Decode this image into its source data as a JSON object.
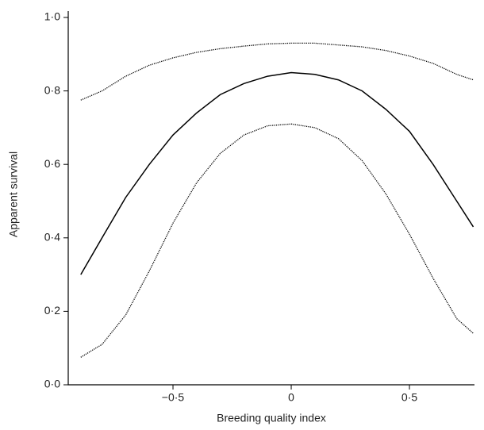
{
  "chart_data": {
    "type": "line",
    "x_label": "Breeding quality index",
    "y_label": "Apparent survival",
    "x": [
      -0.89,
      -0.8,
      -0.7,
      -0.6,
      -0.5,
      -0.4,
      -0.3,
      -0.2,
      -0.1,
      0,
      0.1,
      0.2,
      0.3,
      0.4,
      0.5,
      0.6,
      0.7,
      0.77
    ],
    "series": [
      {
        "color": "#000000",
        "style": "dotted",
        "values": [
          0.775,
          0.8,
          0.84,
          0.87,
          0.89,
          0.905,
          0.915,
          0.922,
          0.928,
          0.93,
          0.93,
          0.925,
          0.92,
          0.91,
          0.895,
          0.875,
          0.845,
          0.83
        ]
      },
      {
        "color": "#000000",
        "style": "solid",
        "values": [
          0.3,
          0.4,
          0.51,
          0.6,
          0.68,
          0.74,
          0.79,
          0.82,
          0.84,
          0.85,
          0.845,
          0.83,
          0.8,
          0.75,
          0.69,
          0.6,
          0.5,
          0.43
        ]
      },
      {
        "color": "#000000",
        "style": "dotted",
        "values": [
          0.075,
          0.11,
          0.19,
          0.31,
          0.44,
          0.55,
          0.63,
          0.68,
          0.705,
          0.71,
          0.7,
          0.67,
          0.61,
          0.52,
          0.41,
          0.29,
          0.18,
          0.14
        ]
      }
    ],
    "xlim": [
      -0.943,
      0.775
    ],
    "ylim": [
      0,
      1
    ],
    "xticks": [
      {
        "value": -0.5,
        "label": "−0·5"
      },
      0,
      {
        "value": 0.5,
        "label": "0·5"
      }
    ],
    "yticks": [
      {
        "value": 0,
        "label": "0·0"
      },
      {
        "value": 0.2,
        "label": "0·2"
      },
      {
        "value": 0.4,
        "label": "0·4"
      },
      {
        "value": 0.6,
        "label": "0·6"
      },
      {
        "value": 0.8,
        "label": "0·8"
      },
      {
        "value": 1,
        "label": "1·0"
      }
    ]
  }
}
